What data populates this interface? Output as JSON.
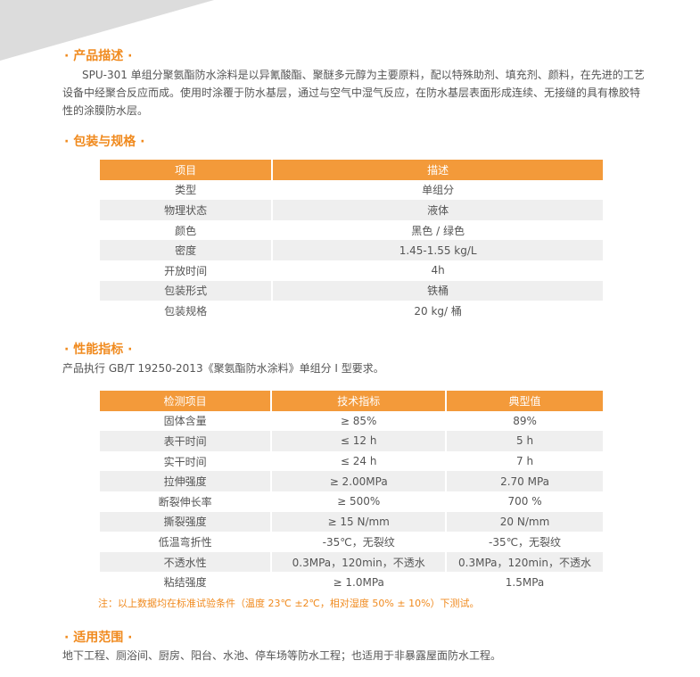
{
  "description": {
    "heading": "· 产品描述 ·",
    "text": "SPU-301 单组分聚氨酯防水涂料是以异氰酸酯、聚醚多元醇为主要原料，配以特殊助剂、填充剂、颜料，在先进的工艺设备中经聚合反应而成。使用时涂覆于防水基层，通过与空气中湿气反应，在防水基层表面形成连续、无接缝的具有橡胶特性的涂膜防水层。"
  },
  "packaging": {
    "heading": "· 包装与规格 ·",
    "table": {
      "header": [
        "项目",
        "描述"
      ],
      "rows": [
        [
          "类型",
          "单组分"
        ],
        [
          "物理状态",
          "液体"
        ],
        [
          "颜色",
          "黑色 / 绿色"
        ],
        [
          "密度",
          "1.45-1.55 kg/L"
        ],
        [
          "开放时间",
          "4h"
        ],
        [
          "包装形式",
          "铁桶"
        ],
        [
          "包装规格",
          "20 kg/ 桶"
        ]
      ]
    }
  },
  "performance": {
    "heading": "· 性能指标 ·",
    "intro": "产品执行 GB/T 19250-2013《聚氨酯防水涂料》单组分 Ⅰ 型要求。",
    "table": {
      "header": [
        "检测项目",
        "技术指标",
        "典型值"
      ],
      "rows": [
        [
          "固体含量",
          "≥ 85%",
          "89%"
        ],
        [
          "表干时间",
          "≤ 12 h",
          "5 h"
        ],
        [
          "实干时间",
          "≤ 24 h",
          "7 h"
        ],
        [
          "拉伸强度",
          "≥ 2.00MPa",
          "2.70 MPa"
        ],
        [
          "断裂伸长率",
          "≥ 500%",
          "700 %"
        ],
        [
          "撕裂强度",
          "≥ 15 N/mm",
          "20 N/mm"
        ],
        [
          "低温弯折性",
          "-35℃，无裂纹",
          "-35℃，无裂纹"
        ],
        [
          "不透水性",
          "0.3MPa，120min，不透水",
          "0.3MPa，120min，不透水"
        ],
        [
          "粘结强度",
          "≥ 1.0MPa",
          "1.5MPa"
        ]
      ]
    },
    "note": "注：以上数据均在标准试验条件（温度 23℃ ±2℃，相对湿度 50% ± 10%）下测试。"
  },
  "application": {
    "heading": "· 适用范围 ·",
    "text": "地下工程、厕浴间、厨房、阳台、水池、停车场等防水工程；也适用于非暴露屋面防水工程。"
  }
}
